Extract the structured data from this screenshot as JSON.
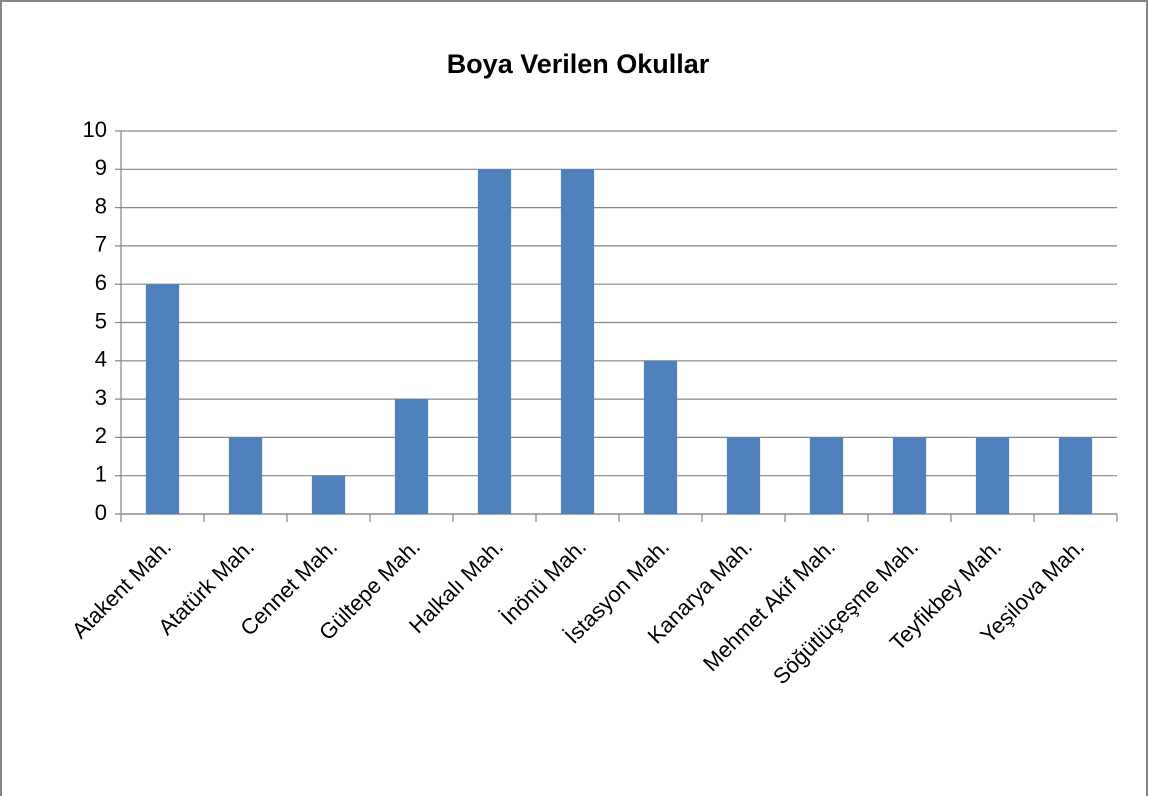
{
  "chart_data": {
    "type": "bar",
    "title": "Boya Verilen Okullar",
    "categories": [
      "Atakent Mah.",
      "Atatürk Mah.",
      "Cennet Mah.",
      "Gültepe Mah.",
      "Halkalı Mah.",
      "İnönü Mah.",
      "İstasyon Mah.",
      "Kanarya Mah.",
      "Mehmet Akif Mah.",
      "Söğütlüçeşme Mah.",
      "Teyfikbey Mah.",
      "Yeşilova Mah."
    ],
    "values": [
      6,
      2,
      1,
      3,
      9,
      9,
      4,
      2,
      2,
      2,
      2,
      2
    ],
    "color": "#4f81bd",
    "ylim": [
      0,
      10
    ],
    "yticks": [
      0,
      1,
      2,
      3,
      4,
      5,
      6,
      7,
      8,
      9,
      10
    ],
    "grid": true
  }
}
